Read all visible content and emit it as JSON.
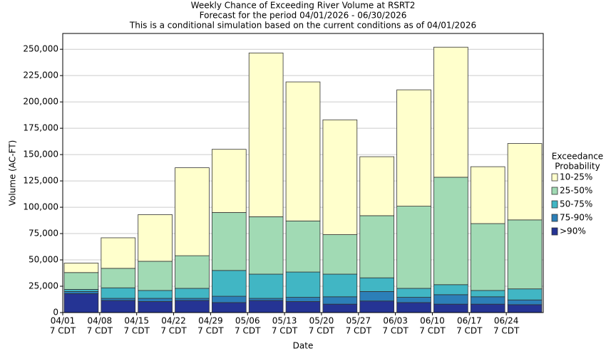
{
  "chart_data": {
    "type": "stacked_bar",
    "title": [
      "Weekly Chance of Exceeding River Volume at RSRT2",
      "Forecast for the period 04/01/2026 - 06/30/2026",
      "This is a conditional simulation based on the current conditions as of 04/01/2026"
    ],
    "x_label": "Date",
    "y_label": "Volume (AC-FT)",
    "categories": [
      "04/01",
      "04/08",
      "04/15",
      "04/22",
      "04/29",
      "05/06",
      "05/13",
      "05/20",
      "05/27",
      "06/03",
      "06/10",
      "06/17",
      "06/24"
    ],
    "time_label": "7 CDT",
    "legend_title": [
      "Exceedance",
      "Probability"
    ],
    "series": [
      {
        "name": ">90%",
        "color": "#253494",
        "values": [
          18000,
          11500,
          10500,
          11500,
          9500,
          11500,
          10500,
          8000,
          11000,
          9500,
          8000,
          8000,
          7500
        ]
      },
      {
        "name": "75-90%",
        "color": "#2c7fb8",
        "values": [
          2000,
          2000,
          3000,
          2000,
          6000,
          2000,
          4000,
          7000,
          9000,
          5000,
          9000,
          7000,
          4500
        ]
      },
      {
        "name": "50-75%",
        "color": "#41b6c4",
        "values": [
          2000,
          10000,
          7500,
          9500,
          24500,
          23000,
          24000,
          21500,
          13000,
          8500,
          9500,
          6000,
          10500
        ]
      },
      {
        "name": "25-50%",
        "color": "#a1dab4",
        "values": [
          16000,
          18500,
          27700,
          31000,
          55000,
          54500,
          48500,
          37500,
          59000,
          78000,
          102000,
          63500,
          65500
        ]
      },
      {
        "name": "10-25%",
        "color": "#ffffcc",
        "values": [
          9000,
          29000,
          44300,
          83500,
          60000,
          155500,
          132000,
          109000,
          56000,
          110500,
          123500,
          54000,
          72500
        ]
      }
    ],
    "ylim": [
      0,
      265000
    ],
    "yticks": [
      0,
      {
        "value": 25000,
        "label": "25,000"
      },
      {
        "value": 50000,
        "label": "50,000"
      },
      {
        "value": 75000,
        "label": "75,000"
      },
      {
        "value": 100000,
        "label": "100,000"
      },
      {
        "value": 125000,
        "label": "125,000"
      },
      {
        "value": 150000,
        "label": "150,000"
      },
      {
        "value": 175000,
        "label": "175,000"
      },
      {
        "value": 200000,
        "label": "200,000"
      },
      {
        "value": 225000,
        "label": "225,000"
      },
      {
        "value": 250000,
        "label": "250,000"
      }
    ],
    "grid": true,
    "legend": "right"
  }
}
